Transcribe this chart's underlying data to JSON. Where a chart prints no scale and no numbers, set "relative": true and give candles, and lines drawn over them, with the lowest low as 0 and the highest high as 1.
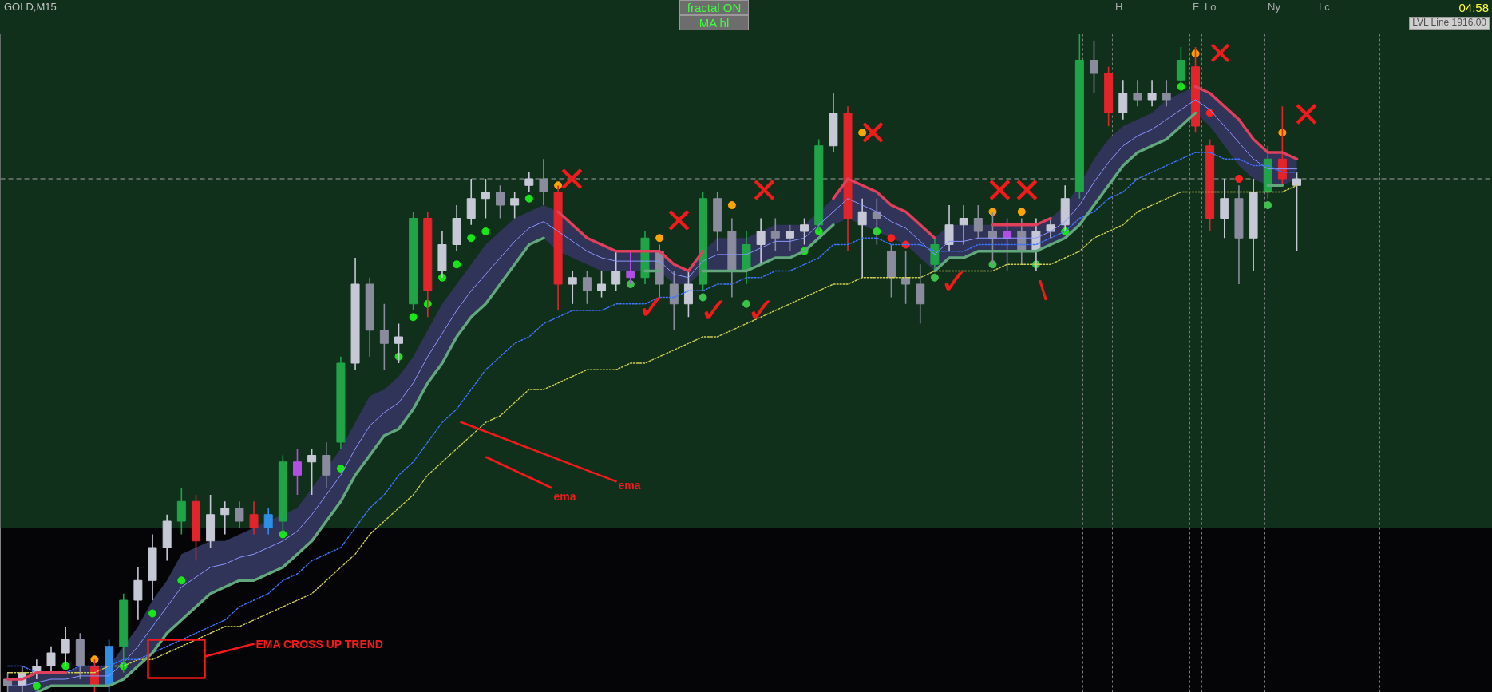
{
  "chart_data": {
    "type": "candlestick",
    "relative": true,
    "categories": [
      null,
      null,
      null,
      null,
      null,
      null,
      null,
      null,
      null,
      null,
      null,
      null,
      null,
      null,
      null,
      null,
      null,
      null,
      null,
      null,
      null,
      null,
      null,
      null,
      null,
      null,
      null,
      null,
      null,
      null,
      null,
      null,
      null,
      null,
      null,
      null,
      null,
      null,
      null,
      null,
      null,
      null,
      null,
      null,
      null,
      null,
      null,
      null,
      null,
      null,
      null,
      null,
      null,
      null,
      null,
      null,
      null,
      null,
      null,
      null,
      null,
      null,
      null,
      null,
      null,
      null,
      null,
      null,
      null,
      null,
      null,
      null,
      null,
      null,
      null,
      null,
      null,
      null,
      null,
      null,
      null,
      null,
      null,
      null,
      null,
      null,
      null,
      null,
      null,
      null,
      null,
      null,
      null,
      null,
      null,
      null,
      null,
      null,
      null,
      null,
      null,
      null,
      null
    ],
    "ohlc": [
      [
        0.02,
        0.03,
        0.0,
        0.01
      ],
      [
        0.01,
        0.04,
        0.0,
        0.03
      ],
      [
        0.03,
        0.05,
        0.02,
        0.04
      ],
      [
        0.04,
        0.07,
        0.03,
        0.06
      ],
      [
        0.06,
        0.1,
        0.04,
        0.08
      ],
      [
        0.08,
        0.09,
        0.02,
        0.04
      ],
      [
        0.04,
        0.05,
        0.0,
        0.01
      ],
      [
        0.01,
        0.08,
        0.0,
        0.07
      ],
      [
        0.07,
        0.15,
        0.03,
        0.14
      ],
      [
        0.14,
        0.19,
        0.11,
        0.17
      ],
      [
        0.17,
        0.24,
        0.14,
        0.22
      ],
      [
        0.22,
        0.27,
        0.2,
        0.26
      ],
      [
        0.26,
        0.31,
        0.24,
        0.29
      ],
      [
        0.29,
        0.3,
        0.2,
        0.23
      ],
      [
        0.23,
        0.3,
        0.22,
        0.27
      ],
      [
        0.27,
        0.29,
        0.24,
        0.28
      ],
      [
        0.28,
        0.29,
        0.25,
        0.26
      ],
      [
        0.27,
        0.29,
        0.24,
        0.25
      ],
      [
        0.25,
        0.28,
        0.24,
        0.27
      ],
      [
        0.26,
        0.36,
        0.24,
        0.35
      ],
      [
        0.33,
        0.37,
        0.3,
        0.35
      ],
      [
        0.35,
        0.37,
        0.3,
        0.36
      ],
      [
        0.36,
        0.38,
        0.31,
        0.33
      ],
      [
        0.38,
        0.51,
        0.37,
        0.5
      ],
      [
        0.5,
        0.66,
        0.49,
        0.62
      ],
      [
        0.62,
        0.63,
        0.51,
        0.55
      ],
      [
        0.55,
        0.59,
        0.49,
        0.53
      ],
      [
        0.53,
        0.56,
        0.5,
        0.54
      ],
      [
        0.59,
        0.73,
        0.58,
        0.72
      ],
      [
        0.72,
        0.73,
        0.57,
        0.61
      ],
      [
        0.64,
        0.7,
        0.63,
        0.68
      ],
      [
        0.68,
        0.74,
        0.67,
        0.72
      ],
      [
        0.72,
        0.78,
        0.71,
        0.75
      ],
      [
        0.75,
        0.78,
        0.72,
        0.76
      ],
      [
        0.76,
        0.77,
        0.72,
        0.74
      ],
      [
        0.74,
        0.76,
        0.72,
        0.75
      ],
      [
        0.77,
        0.79,
        0.76,
        0.78
      ],
      [
        0.78,
        0.81,
        0.74,
        0.76
      ],
      [
        0.76,
        0.77,
        0.58,
        0.62
      ],
      [
        0.62,
        0.64,
        0.59,
        0.63
      ],
      [
        0.63,
        0.64,
        0.59,
        0.61
      ],
      [
        0.61,
        0.64,
        0.6,
        0.62
      ],
      [
        0.62,
        0.67,
        0.61,
        0.64
      ],
      [
        0.63,
        0.67,
        0.62,
        0.64
      ],
      [
        0.63,
        0.7,
        0.62,
        0.69
      ],
      [
        0.67,
        0.68,
        0.6,
        0.62
      ],
      [
        0.62,
        0.64,
        0.55,
        0.59
      ],
      [
        0.59,
        0.64,
        0.57,
        0.62
      ],
      [
        0.62,
        0.76,
        0.61,
        0.75
      ],
      [
        0.75,
        0.76,
        0.67,
        0.7
      ],
      [
        0.7,
        0.72,
        0.6,
        0.64
      ],
      [
        0.64,
        0.7,
        0.62,
        0.68
      ],
      [
        0.68,
        0.72,
        0.65,
        0.7
      ],
      [
        0.7,
        0.72,
        0.67,
        0.69
      ],
      [
        0.69,
        0.71,
        0.67,
        0.7
      ],
      [
        0.7,
        0.72,
        0.68,
        0.71
      ],
      [
        0.71,
        0.84,
        0.7,
        0.83
      ],
      [
        0.83,
        0.91,
        0.82,
        0.88
      ],
      [
        0.88,
        0.89,
        0.67,
        0.72
      ],
      [
        0.71,
        0.75,
        0.63,
        0.73
      ],
      [
        0.73,
        0.75,
        0.68,
        0.72
      ],
      [
        0.67,
        0.68,
        0.6,
        0.63
      ],
      [
        0.63,
        0.67,
        0.59,
        0.62
      ],
      [
        0.62,
        0.65,
        0.56,
        0.59
      ],
      [
        0.65,
        0.69,
        0.64,
        0.68
      ],
      [
        0.68,
        0.74,
        0.67,
        0.71
      ],
      [
        0.71,
        0.74,
        0.68,
        0.72
      ],
      [
        0.72,
        0.74,
        0.69,
        0.7
      ],
      [
        0.7,
        0.73,
        0.65,
        0.69
      ],
      [
        0.69,
        0.72,
        0.64,
        0.7
      ],
      [
        0.7,
        0.72,
        0.65,
        0.67
      ],
      [
        0.67,
        0.72,
        0.64,
        0.7
      ],
      [
        0.7,
        0.72,
        0.69,
        0.71
      ],
      [
        0.71,
        0.77,
        0.7,
        0.75
      ],
      [
        0.76,
        1.0,
        0.75,
        0.96
      ],
      [
        0.96,
        0.99,
        0.91,
        0.94
      ],
      [
        0.94,
        0.95,
        0.86,
        0.88
      ],
      [
        0.88,
        0.93,
        0.87,
        0.91
      ],
      [
        0.91,
        0.93,
        0.89,
        0.9
      ],
      [
        0.9,
        0.93,
        0.89,
        0.91
      ],
      [
        0.91,
        0.93,
        0.89,
        0.9
      ],
      [
        0.93,
        0.98,
        0.92,
        0.96
      ],
      [
        0.95,
        0.98,
        0.85,
        0.86
      ],
      [
        0.83,
        0.84,
        0.7,
        0.72
      ],
      [
        0.72,
        0.78,
        0.69,
        0.75
      ],
      [
        0.75,
        0.77,
        0.62,
        0.69
      ],
      [
        0.69,
        0.78,
        0.64,
        0.76
      ],
      [
        0.76,
        0.83,
        0.75,
        0.81
      ],
      [
        0.81,
        0.89,
        0.77,
        0.78
      ],
      [
        0.77,
        0.79,
        0.67,
        0.78
      ],
      null,
      null,
      null,
      null,
      null,
      null,
      null,
      null,
      null,
      null,
      null,
      null,
      null
    ],
    "colors": [
      "#8a8c9e",
      "#c6c8d6",
      "#c6c8d6",
      "#c6c8d6",
      "#c6c8d6",
      "#8a8c9e",
      "#e3242b",
      "#2f8fe6",
      "#1fa548",
      "#c6c8d6",
      "#c6c8d6",
      "#c6c8d6",
      "#1fa548",
      "#e3242b",
      "#c6c8d6",
      "#c6c8d6",
      "#8a8c9e",
      "#e3242b",
      "#2f8fe6",
      "#1fa548",
      "#b24fe3",
      "#c6c8d6",
      "#8a8c9e",
      "#1fa548",
      "#c6c8d6",
      "#8a8c9e",
      "#8a8c9e",
      "#c6c8d6",
      "#1fa548",
      "#e3242b",
      "#c6c8d6",
      "#c6c8d6",
      "#c6c8d6",
      "#c6c8d6",
      "#8a8c9e",
      "#c6c8d6",
      "#c6c8d6",
      "#8a8c9e",
      "#e3242b",
      "#c6c8d6",
      "#8a8c9e",
      "#c6c8d6",
      "#c6c8d6",
      "#b24fe3",
      "#1fa548",
      "#8a8c9e",
      "#8a8c9e",
      "#c6c8d6",
      "#1fa548",
      "#8a8c9e",
      "#8a8c9e",
      "#1fa548",
      "#c6c8d6",
      "#8a8c9e",
      "#c6c8d6",
      "#c6c8d6",
      "#1fa548",
      "#c6c8d6",
      "#e3242b",
      "#c6c8d6",
      "#8a8c9e",
      "#8a8c9e",
      "#8a8c9e",
      "#8a8c9e",
      "#1fa548",
      "#c6c8d6",
      "#c6c8d6",
      "#8a8c9e",
      "#8a8c9e",
      "#b24fe3",
      "#8a8c9e",
      "#c6c8d6",
      "#c6c8d6",
      "#c6c8d6",
      "#1fa548",
      "#8a8c9e",
      "#e3242b",
      "#c6c8d6",
      "#8a8c9e",
      "#c6c8d6",
      "#8a8c9e",
      "#1fa548",
      "#e3242b",
      "#e3242b",
      "#c6c8d6",
      "#8a8c9e",
      "#c6c8d6",
      "#1fa548",
      "#e3242b",
      "#c6c8d6",
      null,
      null,
      null,
      null,
      null,
      null,
      null,
      null,
      null,
      null,
      null,
      null,
      null
    ],
    "series": [
      {
        "type": "line",
        "color": "#8a96ff",
        "values": [
          0.01,
          0.01,
          0.015,
          0.02,
          0.02,
          0.025,
          0.025,
          0.025,
          0.045,
          0.07,
          0.1,
          0.13,
          0.16,
          0.175,
          0.19,
          0.195,
          0.205,
          0.21,
          0.22,
          0.23,
          0.245,
          0.27,
          0.3,
          0.33,
          0.37,
          0.405,
          0.425,
          0.44,
          0.47,
          0.51,
          0.545,
          0.58,
          0.61,
          0.635,
          0.66,
          0.685,
          0.705,
          0.715,
          0.7,
          0.685,
          0.67,
          0.66,
          0.655,
          0.655,
          0.655,
          0.655,
          0.635,
          0.63,
          0.655,
          0.665,
          0.665,
          0.665,
          0.675,
          0.685,
          0.685,
          0.69,
          0.71,
          0.73,
          0.75,
          0.74,
          0.73,
          0.715,
          0.705,
          0.685,
          0.665,
          0.685,
          0.685,
          0.69,
          0.69,
          0.69,
          0.69,
          0.69,
          0.7,
          0.715,
          0.74,
          0.775,
          0.805,
          0.83,
          0.845,
          0.855,
          0.87,
          0.885,
          0.9,
          0.885,
          0.86,
          0.835,
          0.81,
          0.795,
          0.795,
          0.795,
          null,
          null,
          null,
          null,
          null,
          null,
          null,
          null,
          null,
          null,
          null,
          null,
          null
        ],
        "lower": [
          0.0,
          0.0,
          0.0,
          0.01,
          0.01,
          0.01,
          0.01,
          0.01,
          0.02,
          0.04,
          0.06,
          0.09,
          0.11,
          0.13,
          0.15,
          0.16,
          0.17,
          0.17,
          0.18,
          0.19,
          0.21,
          0.23,
          0.26,
          0.29,
          0.33,
          0.36,
          0.39,
          0.4,
          0.43,
          0.47,
          0.5,
          0.54,
          0.57,
          0.59,
          0.62,
          0.65,
          0.68,
          0.69,
          0.67,
          0.66,
          0.65,
          0.64,
          0.64,
          0.64,
          0.64,
          0.64,
          0.62,
          0.62,
          0.64,
          0.64,
          0.64,
          0.64,
          0.65,
          0.66,
          0.66,
          0.67,
          0.69,
          0.71,
          0.72,
          0.71,
          0.7,
          0.69,
          0.68,
          0.66,
          0.64,
          0.66,
          0.66,
          0.67,
          0.67,
          0.67,
          0.67,
          0.67,
          0.68,
          0.69,
          0.71,
          0.74,
          0.77,
          0.8,
          0.82,
          0.83,
          0.84,
          0.86,
          0.88,
          0.86,
          0.83,
          0.8,
          0.78,
          0.77,
          0.77,
          0.78,
          null,
          null,
          null,
          null,
          null,
          null,
          null,
          null,
          null,
          null,
          null,
          null,
          null
        ],
        "upper": [
          0.02,
          0.02,
          0.03,
          0.03,
          0.03,
          0.04,
          0.04,
          0.04,
          0.07,
          0.1,
          0.14,
          0.17,
          0.21,
          0.22,
          0.23,
          0.23,
          0.24,
          0.25,
          0.26,
          0.27,
          0.28,
          0.31,
          0.34,
          0.37,
          0.41,
          0.45,
          0.46,
          0.48,
          0.51,
          0.55,
          0.59,
          0.62,
          0.65,
          0.68,
          0.7,
          0.72,
          0.73,
          0.74,
          0.73,
          0.71,
          0.69,
          0.68,
          0.67,
          0.67,
          0.67,
          0.67,
          0.65,
          0.64,
          0.67,
          0.69,
          0.69,
          0.69,
          0.7,
          0.71,
          0.71,
          0.71,
          0.73,
          0.75,
          0.78,
          0.77,
          0.76,
          0.74,
          0.73,
          0.71,
          0.69,
          0.71,
          0.71,
          0.71,
          0.71,
          0.71,
          0.71,
          0.71,
          0.72,
          0.74,
          0.77,
          0.81,
          0.84,
          0.86,
          0.87,
          0.88,
          0.9,
          0.91,
          0.92,
          0.91,
          0.89,
          0.87,
          0.84,
          0.82,
          0.82,
          0.81,
          null,
          null,
          null,
          null,
          null,
          null,
          null,
          null,
          null,
          null,
          null,
          null,
          null
        ]
      },
      {
        "type": "line",
        "color": "#cfcf55",
        "line_style": "dotted",
        "values": [
          0.03,
          0.03,
          0.03,
          0.03,
          0.03,
          0.03,
          0.03,
          0.04,
          0.04,
          0.05,
          0.05,
          0.06,
          0.07,
          0.08,
          0.09,
          0.1,
          0.1,
          0.11,
          0.12,
          0.13,
          0.14,
          0.15,
          0.17,
          0.19,
          0.21,
          0.24,
          0.26,
          0.28,
          0.3,
          0.33,
          0.35,
          0.37,
          0.39,
          0.41,
          0.42,
          0.44,
          0.46,
          0.46,
          0.47,
          0.48,
          0.49,
          0.49,
          0.49,
          0.5,
          0.5,
          0.51,
          0.52,
          0.53,
          0.54,
          0.54,
          0.55,
          0.56,
          0.57,
          0.58,
          0.59,
          0.6,
          0.61,
          0.62,
          0.62,
          0.63,
          0.63,
          0.63,
          0.63,
          0.63,
          0.64,
          0.64,
          0.64,
          0.64,
          0.64,
          0.65,
          0.65,
          0.65,
          0.65,
          0.66,
          0.67,
          0.69,
          0.7,
          0.71,
          0.73,
          0.74,
          0.75,
          0.76,
          0.76,
          0.76,
          0.76,
          0.76,
          0.76,
          0.76,
          0.76,
          0.77,
          null,
          null,
          null,
          null,
          null,
          null,
          null,
          null,
          null,
          null,
          null,
          null,
          null
        ]
      },
      {
        "type": "line",
        "color": "#3f74ff",
        "line_style": "dotted",
        "values": [
          0.04,
          0.04,
          0.03,
          0.03,
          0.03,
          0.04,
          0.04,
          0.04,
          0.05,
          0.05,
          0.06,
          0.07,
          0.08,
          0.09,
          0.1,
          0.11,
          0.13,
          0.14,
          0.15,
          0.17,
          0.18,
          0.2,
          0.21,
          0.22,
          0.25,
          0.28,
          0.3,
          0.33,
          0.35,
          0.38,
          0.41,
          0.43,
          0.46,
          0.49,
          0.51,
          0.53,
          0.54,
          0.56,
          0.57,
          0.58,
          0.58,
          0.58,
          0.59,
          0.59,
          0.59,
          0.6,
          0.6,
          0.61,
          0.61,
          0.62,
          0.62,
          0.63,
          0.63,
          0.64,
          0.64,
          0.65,
          0.66,
          0.68,
          0.68,
          0.69,
          0.69,
          0.68,
          0.68,
          0.68,
          0.67,
          0.67,
          0.67,
          0.68,
          0.68,
          0.68,
          0.68,
          0.68,
          0.69,
          0.7,
          0.72,
          0.73,
          0.75,
          0.76,
          0.78,
          0.79,
          0.8,
          0.81,
          0.82,
          0.82,
          0.81,
          0.81,
          0.8,
          0.8,
          0.79,
          0.79,
          null,
          null,
          null,
          null,
          null,
          null,
          null,
          null,
          null,
          null,
          null,
          null,
          null
        ]
      },
      {
        "type": "line",
        "color": "#62a87c",
        "line_style": "solid",
        "values": [
          null,
          null,
          0.0,
          0.01,
          0.01,
          0.01,
          0.01,
          0.01,
          0.02,
          0.04,
          0.06,
          0.09,
          0.11,
          0.13,
          0.15,
          0.16,
          0.17,
          0.17,
          0.18,
          0.19,
          0.21,
          0.23,
          0.26,
          0.29,
          0.33,
          0.36,
          0.39,
          0.4,
          0.43,
          0.47,
          0.5,
          0.54,
          0.57,
          0.59,
          0.62,
          0.65,
          0.68,
          0.69,
          null,
          null,
          null,
          null,
          null,
          null,
          0.64,
          0.64,
          null,
          null,
          0.64,
          0.64,
          0.64,
          0.64,
          0.65,
          0.66,
          0.66,
          0.67,
          0.69,
          0.71,
          null,
          null,
          null,
          null,
          null,
          null,
          0.64,
          0.66,
          0.66,
          0.67,
          0.67,
          0.67,
          0.67,
          0.67,
          0.68,
          0.69,
          0.71,
          0.74,
          0.77,
          0.8,
          0.82,
          0.83,
          0.84,
          0.86,
          0.88,
          null,
          null,
          null,
          null,
          0.77,
          0.77,
          null,
          null,
          null,
          null,
          null,
          null,
          null,
          null,
          null,
          null,
          null,
          null,
          null,
          null
        ]
      },
      {
        "type": "line",
        "color": "#e0405c",
        "line_style": "solid",
        "values": [
          0.02,
          0.02,
          0.03,
          0.03,
          0.03,
          null,
          null,
          null,
          null,
          null,
          null,
          null,
          null,
          null,
          null,
          null,
          null,
          null,
          null,
          null,
          null,
          null,
          null,
          null,
          null,
          null,
          null,
          null,
          null,
          null,
          null,
          null,
          null,
          null,
          null,
          null,
          null,
          null,
          0.73,
          0.71,
          0.69,
          0.68,
          0.67,
          0.67,
          0.67,
          0.67,
          0.65,
          0.64,
          0.67,
          null,
          null,
          null,
          null,
          null,
          null,
          null,
          null,
          0.75,
          0.78,
          0.77,
          0.76,
          0.74,
          0.73,
          0.71,
          0.69,
          null,
          null,
          null,
          0.71,
          0.71,
          0.71,
          0.71,
          0.72,
          null,
          null,
          null,
          null,
          null,
          null,
          null,
          null,
          null,
          0.92,
          0.91,
          0.89,
          0.87,
          0.84,
          0.82,
          0.82,
          0.81,
          null,
          null,
          null,
          null,
          null,
          null,
          null,
          null,
          null,
          null,
          null,
          null,
          null
        ]
      },
      {
        "type": "scatter",
        "color": "#19e619",
        "marker": "circle",
        "values": [
          null,
          null,
          0.01,
          null,
          0.04,
          null,
          null,
          null,
          0.04,
          null,
          0.12,
          null,
          0.17,
          null,
          null,
          null,
          null,
          null,
          null,
          0.24,
          null,
          null,
          null,
          0.34,
          null,
          null,
          null,
          0.51,
          0.57,
          0.59,
          0.63,
          0.65,
          0.69,
          0.7,
          null,
          null,
          0.75,
          null,
          null,
          null,
          null,
          null,
          null,
          null,
          null,
          null,
          null,
          null,
          null,
          null,
          null,
          null,
          null,
          null,
          null,
          0.67,
          0.7,
          null,
          null,
          null,
          0.7,
          null,
          null,
          null,
          null,
          null,
          null,
          null,
          null,
          null,
          null,
          null,
          null,
          0.7,
          null,
          null,
          null,
          null,
          null,
          null,
          null,
          0.92,
          null,
          null,
          null,
          null,
          null,
          null,
          null,
          null,
          null,
          null,
          null,
          null,
          null,
          null,
          null,
          null,
          null,
          null,
          null,
          null,
          null
        ]
      },
      {
        "type": "scatter",
        "color": "#3cc24c",
        "marker": "circle",
        "values": [
          null,
          null,
          null,
          null,
          null,
          null,
          null,
          null,
          null,
          null,
          null,
          null,
          null,
          null,
          null,
          null,
          null,
          null,
          null,
          null,
          null,
          null,
          null,
          null,
          null,
          null,
          null,
          null,
          null,
          null,
          null,
          null,
          null,
          null,
          null,
          null,
          null,
          null,
          null,
          null,
          null,
          null,
          null,
          0.62,
          null,
          null,
          null,
          null,
          0.6,
          null,
          null,
          0.59,
          null,
          null,
          null,
          null,
          null,
          null,
          null,
          null,
          null,
          null,
          null,
          null,
          0.63,
          null,
          null,
          null,
          0.65,
          null,
          null,
          0.65,
          null,
          null,
          null,
          null,
          null,
          null,
          null,
          null,
          null,
          null,
          null,
          null,
          null,
          null,
          null,
          0.74,
          null,
          null,
          null,
          null,
          null,
          null,
          null,
          null,
          null,
          null,
          null,
          null,
          null,
          null,
          null
        ]
      },
      {
        "type": "scatter",
        "color": "#ffa500",
        "marker": "circle",
        "values": [
          null,
          null,
          null,
          null,
          null,
          null,
          0.05,
          null,
          null,
          null,
          null,
          null,
          null,
          null,
          null,
          null,
          null,
          null,
          null,
          null,
          null,
          null,
          null,
          null,
          null,
          null,
          null,
          null,
          null,
          null,
          null,
          null,
          null,
          null,
          null,
          null,
          null,
          null,
          0.77,
          null,
          null,
          null,
          null,
          null,
          null,
          0.69,
          null,
          null,
          null,
          null,
          0.74,
          null,
          null,
          null,
          null,
          null,
          null,
          null,
          null,
          0.85,
          null,
          null,
          null,
          null,
          null,
          null,
          null,
          null,
          0.73,
          null,
          0.73,
          null,
          null,
          null,
          null,
          null,
          null,
          null,
          null,
          null,
          null,
          null,
          0.97,
          null,
          null,
          null,
          null,
          null,
          0.85,
          null,
          null,
          null,
          null,
          null,
          null,
          null,
          null,
          null,
          null,
          null,
          null,
          null,
          null
        ]
      },
      {
        "type": "scatter",
        "color": "#ff2020",
        "marker": "circle",
        "values": [
          null,
          null,
          null,
          null,
          null,
          null,
          null,
          null,
          null,
          null,
          null,
          null,
          null,
          null,
          null,
          null,
          null,
          null,
          null,
          null,
          null,
          null,
          null,
          null,
          null,
          null,
          null,
          null,
          null,
          null,
          null,
          null,
          null,
          null,
          null,
          null,
          null,
          null,
          null,
          null,
          null,
          null,
          null,
          null,
          null,
          null,
          null,
          null,
          null,
          null,
          null,
          null,
          null,
          null,
          null,
          null,
          null,
          null,
          null,
          null,
          null,
          0.69,
          0.68,
          null,
          null,
          null,
          null,
          null,
          null,
          null,
          null,
          null,
          null,
          null,
          null,
          null,
          null,
          null,
          null,
          null,
          null,
          null,
          null,
          0.88,
          null,
          0.78,
          null,
          null,
          null,
          null,
          null,
          null,
          null,
          null,
          null,
          null,
          null,
          null,
          null,
          null,
          null,
          null,
          null
        ]
      }
    ],
    "bands": [
      {
        "axis": "y",
        "from": 0.25,
        "to": 1.0,
        "color": "#11301c"
      }
    ],
    "ref_lines": [
      {
        "axis": "y",
        "value": 0.78,
        "color": "#a0a0a0",
        "line_style": "dashed"
      }
    ],
    "annotations": [
      "GOLD,M15",
      "fractal ON",
      "MA hl",
      "04:58",
      "LVL Line 1916.00",
      "H",
      "F",
      "Lo",
      "Ny",
      "Lc",
      "✕",
      "✕",
      "✕",
      "✕",
      "✕",
      "✕",
      "✕",
      "✕",
      "✓",
      "✓",
      "✓",
      "✓",
      "\\",
      "ema",
      "ema",
      "EMA CROSS UP TREND"
    ]
  }
}
